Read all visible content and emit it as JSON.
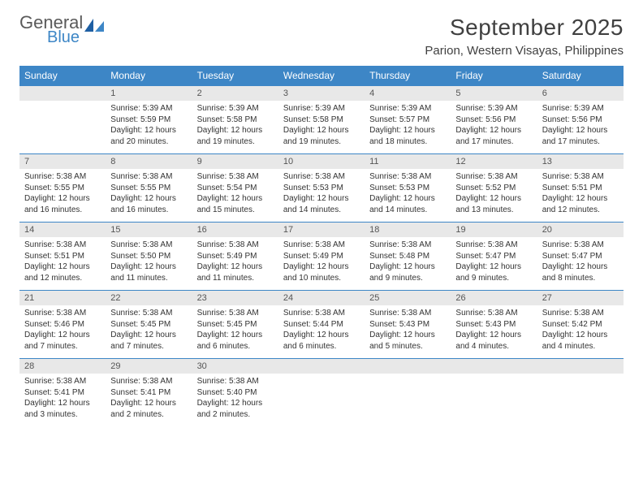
{
  "logo": {
    "general": "General",
    "blue": "Blue"
  },
  "title": "September 2025",
  "location": "Parion, Western Visayas, Philippines",
  "colors": {
    "header_bg": "#3d86c6",
    "header_text": "#ffffff",
    "daynum_bg": "#e8e8e8",
    "border": "#3d86c6",
    "text": "#333333",
    "title_color": "#404040"
  },
  "typography": {
    "title_fontsize": 28,
    "location_fontsize": 15,
    "dayhead_fontsize": 12,
    "daynum_fontsize": 11,
    "body_fontsize": 10
  },
  "layout": {
    "columns": 7,
    "rows": 5,
    "start_day_index": 1
  },
  "day_headers": [
    "Sunday",
    "Monday",
    "Tuesday",
    "Wednesday",
    "Thursday",
    "Friday",
    "Saturday"
  ],
  "weeks": [
    [
      null,
      {
        "n": "1",
        "sr": "Sunrise: 5:39 AM",
        "ss": "Sunset: 5:59 PM",
        "dl": "Daylight: 12 hours and 20 minutes."
      },
      {
        "n": "2",
        "sr": "Sunrise: 5:39 AM",
        "ss": "Sunset: 5:58 PM",
        "dl": "Daylight: 12 hours and 19 minutes."
      },
      {
        "n": "3",
        "sr": "Sunrise: 5:39 AM",
        "ss": "Sunset: 5:58 PM",
        "dl": "Daylight: 12 hours and 19 minutes."
      },
      {
        "n": "4",
        "sr": "Sunrise: 5:39 AM",
        "ss": "Sunset: 5:57 PM",
        "dl": "Daylight: 12 hours and 18 minutes."
      },
      {
        "n": "5",
        "sr": "Sunrise: 5:39 AM",
        "ss": "Sunset: 5:56 PM",
        "dl": "Daylight: 12 hours and 17 minutes."
      },
      {
        "n": "6",
        "sr": "Sunrise: 5:39 AM",
        "ss": "Sunset: 5:56 PM",
        "dl": "Daylight: 12 hours and 17 minutes."
      }
    ],
    [
      {
        "n": "7",
        "sr": "Sunrise: 5:38 AM",
        "ss": "Sunset: 5:55 PM",
        "dl": "Daylight: 12 hours and 16 minutes."
      },
      {
        "n": "8",
        "sr": "Sunrise: 5:38 AM",
        "ss": "Sunset: 5:55 PM",
        "dl": "Daylight: 12 hours and 16 minutes."
      },
      {
        "n": "9",
        "sr": "Sunrise: 5:38 AM",
        "ss": "Sunset: 5:54 PM",
        "dl": "Daylight: 12 hours and 15 minutes."
      },
      {
        "n": "10",
        "sr": "Sunrise: 5:38 AM",
        "ss": "Sunset: 5:53 PM",
        "dl": "Daylight: 12 hours and 14 minutes."
      },
      {
        "n": "11",
        "sr": "Sunrise: 5:38 AM",
        "ss": "Sunset: 5:53 PM",
        "dl": "Daylight: 12 hours and 14 minutes."
      },
      {
        "n": "12",
        "sr": "Sunrise: 5:38 AM",
        "ss": "Sunset: 5:52 PM",
        "dl": "Daylight: 12 hours and 13 minutes."
      },
      {
        "n": "13",
        "sr": "Sunrise: 5:38 AM",
        "ss": "Sunset: 5:51 PM",
        "dl": "Daylight: 12 hours and 12 minutes."
      }
    ],
    [
      {
        "n": "14",
        "sr": "Sunrise: 5:38 AM",
        "ss": "Sunset: 5:51 PM",
        "dl": "Daylight: 12 hours and 12 minutes."
      },
      {
        "n": "15",
        "sr": "Sunrise: 5:38 AM",
        "ss": "Sunset: 5:50 PM",
        "dl": "Daylight: 12 hours and 11 minutes."
      },
      {
        "n": "16",
        "sr": "Sunrise: 5:38 AM",
        "ss": "Sunset: 5:49 PM",
        "dl": "Daylight: 12 hours and 11 minutes."
      },
      {
        "n": "17",
        "sr": "Sunrise: 5:38 AM",
        "ss": "Sunset: 5:49 PM",
        "dl": "Daylight: 12 hours and 10 minutes."
      },
      {
        "n": "18",
        "sr": "Sunrise: 5:38 AM",
        "ss": "Sunset: 5:48 PM",
        "dl": "Daylight: 12 hours and 9 minutes."
      },
      {
        "n": "19",
        "sr": "Sunrise: 5:38 AM",
        "ss": "Sunset: 5:47 PM",
        "dl": "Daylight: 12 hours and 9 minutes."
      },
      {
        "n": "20",
        "sr": "Sunrise: 5:38 AM",
        "ss": "Sunset: 5:47 PM",
        "dl": "Daylight: 12 hours and 8 minutes."
      }
    ],
    [
      {
        "n": "21",
        "sr": "Sunrise: 5:38 AM",
        "ss": "Sunset: 5:46 PM",
        "dl": "Daylight: 12 hours and 7 minutes."
      },
      {
        "n": "22",
        "sr": "Sunrise: 5:38 AM",
        "ss": "Sunset: 5:45 PM",
        "dl": "Daylight: 12 hours and 7 minutes."
      },
      {
        "n": "23",
        "sr": "Sunrise: 5:38 AM",
        "ss": "Sunset: 5:45 PM",
        "dl": "Daylight: 12 hours and 6 minutes."
      },
      {
        "n": "24",
        "sr": "Sunrise: 5:38 AM",
        "ss": "Sunset: 5:44 PM",
        "dl": "Daylight: 12 hours and 6 minutes."
      },
      {
        "n": "25",
        "sr": "Sunrise: 5:38 AM",
        "ss": "Sunset: 5:43 PM",
        "dl": "Daylight: 12 hours and 5 minutes."
      },
      {
        "n": "26",
        "sr": "Sunrise: 5:38 AM",
        "ss": "Sunset: 5:43 PM",
        "dl": "Daylight: 12 hours and 4 minutes."
      },
      {
        "n": "27",
        "sr": "Sunrise: 5:38 AM",
        "ss": "Sunset: 5:42 PM",
        "dl": "Daylight: 12 hours and 4 minutes."
      }
    ],
    [
      {
        "n": "28",
        "sr": "Sunrise: 5:38 AM",
        "ss": "Sunset: 5:41 PM",
        "dl": "Daylight: 12 hours and 3 minutes."
      },
      {
        "n": "29",
        "sr": "Sunrise: 5:38 AM",
        "ss": "Sunset: 5:41 PM",
        "dl": "Daylight: 12 hours and 2 minutes."
      },
      {
        "n": "30",
        "sr": "Sunrise: 5:38 AM",
        "ss": "Sunset: 5:40 PM",
        "dl": "Daylight: 12 hours and 2 minutes."
      },
      null,
      null,
      null,
      null
    ]
  ]
}
